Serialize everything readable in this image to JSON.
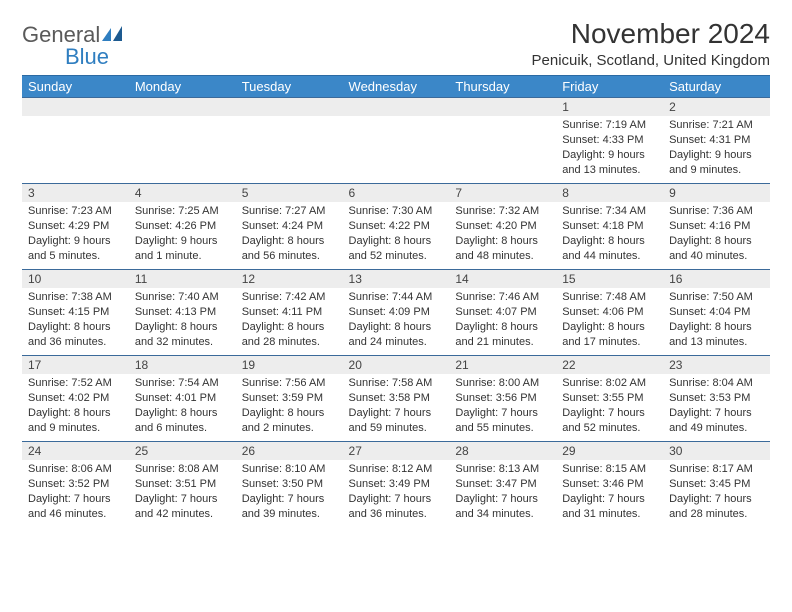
{
  "logo": {
    "word1": "General",
    "word2": "Blue",
    "icon_color": "#2f7ec0",
    "word1_color": "#5a5a5a",
    "word2_color": "#2f7ec0"
  },
  "title": "November 2024",
  "subtitle": "Penicuik, Scotland, United Kingdom",
  "header_bg": "#3b87c8",
  "header_border": "#2b6aa3",
  "daynum_bg": "#ededed",
  "cell_border": "#3b6a9a",
  "day_headers": [
    "Sunday",
    "Monday",
    "Tuesday",
    "Wednesday",
    "Thursday",
    "Friday",
    "Saturday"
  ],
  "weeks": [
    [
      {
        "blank": true
      },
      {
        "blank": true
      },
      {
        "blank": true
      },
      {
        "blank": true
      },
      {
        "blank": true
      },
      {
        "n": "1",
        "sunrise": "Sunrise: 7:19 AM",
        "sunset": "Sunset: 4:33 PM",
        "day1": "Daylight: 9 hours",
        "day2": "and 13 minutes."
      },
      {
        "n": "2",
        "sunrise": "Sunrise: 7:21 AM",
        "sunset": "Sunset: 4:31 PM",
        "day1": "Daylight: 9 hours",
        "day2": "and 9 minutes."
      }
    ],
    [
      {
        "n": "3",
        "sunrise": "Sunrise: 7:23 AM",
        "sunset": "Sunset: 4:29 PM",
        "day1": "Daylight: 9 hours",
        "day2": "and 5 minutes."
      },
      {
        "n": "4",
        "sunrise": "Sunrise: 7:25 AM",
        "sunset": "Sunset: 4:26 PM",
        "day1": "Daylight: 9 hours",
        "day2": "and 1 minute."
      },
      {
        "n": "5",
        "sunrise": "Sunrise: 7:27 AM",
        "sunset": "Sunset: 4:24 PM",
        "day1": "Daylight: 8 hours",
        "day2": "and 56 minutes."
      },
      {
        "n": "6",
        "sunrise": "Sunrise: 7:30 AM",
        "sunset": "Sunset: 4:22 PM",
        "day1": "Daylight: 8 hours",
        "day2": "and 52 minutes."
      },
      {
        "n": "7",
        "sunrise": "Sunrise: 7:32 AM",
        "sunset": "Sunset: 4:20 PM",
        "day1": "Daylight: 8 hours",
        "day2": "and 48 minutes."
      },
      {
        "n": "8",
        "sunrise": "Sunrise: 7:34 AM",
        "sunset": "Sunset: 4:18 PM",
        "day1": "Daylight: 8 hours",
        "day2": "and 44 minutes."
      },
      {
        "n": "9",
        "sunrise": "Sunrise: 7:36 AM",
        "sunset": "Sunset: 4:16 PM",
        "day1": "Daylight: 8 hours",
        "day2": "and 40 minutes."
      }
    ],
    [
      {
        "n": "10",
        "sunrise": "Sunrise: 7:38 AM",
        "sunset": "Sunset: 4:15 PM",
        "day1": "Daylight: 8 hours",
        "day2": "and 36 minutes."
      },
      {
        "n": "11",
        "sunrise": "Sunrise: 7:40 AM",
        "sunset": "Sunset: 4:13 PM",
        "day1": "Daylight: 8 hours",
        "day2": "and 32 minutes."
      },
      {
        "n": "12",
        "sunrise": "Sunrise: 7:42 AM",
        "sunset": "Sunset: 4:11 PM",
        "day1": "Daylight: 8 hours",
        "day2": "and 28 minutes."
      },
      {
        "n": "13",
        "sunrise": "Sunrise: 7:44 AM",
        "sunset": "Sunset: 4:09 PM",
        "day1": "Daylight: 8 hours",
        "day2": "and 24 minutes."
      },
      {
        "n": "14",
        "sunrise": "Sunrise: 7:46 AM",
        "sunset": "Sunset: 4:07 PM",
        "day1": "Daylight: 8 hours",
        "day2": "and 21 minutes."
      },
      {
        "n": "15",
        "sunrise": "Sunrise: 7:48 AM",
        "sunset": "Sunset: 4:06 PM",
        "day1": "Daylight: 8 hours",
        "day2": "and 17 minutes."
      },
      {
        "n": "16",
        "sunrise": "Sunrise: 7:50 AM",
        "sunset": "Sunset: 4:04 PM",
        "day1": "Daylight: 8 hours",
        "day2": "and 13 minutes."
      }
    ],
    [
      {
        "n": "17",
        "sunrise": "Sunrise: 7:52 AM",
        "sunset": "Sunset: 4:02 PM",
        "day1": "Daylight: 8 hours",
        "day2": "and 9 minutes."
      },
      {
        "n": "18",
        "sunrise": "Sunrise: 7:54 AM",
        "sunset": "Sunset: 4:01 PM",
        "day1": "Daylight: 8 hours",
        "day2": "and 6 minutes."
      },
      {
        "n": "19",
        "sunrise": "Sunrise: 7:56 AM",
        "sunset": "Sunset: 3:59 PM",
        "day1": "Daylight: 8 hours",
        "day2": "and 2 minutes."
      },
      {
        "n": "20",
        "sunrise": "Sunrise: 7:58 AM",
        "sunset": "Sunset: 3:58 PM",
        "day1": "Daylight: 7 hours",
        "day2": "and 59 minutes."
      },
      {
        "n": "21",
        "sunrise": "Sunrise: 8:00 AM",
        "sunset": "Sunset: 3:56 PM",
        "day1": "Daylight: 7 hours",
        "day2": "and 55 minutes."
      },
      {
        "n": "22",
        "sunrise": "Sunrise: 8:02 AM",
        "sunset": "Sunset: 3:55 PM",
        "day1": "Daylight: 7 hours",
        "day2": "and 52 minutes."
      },
      {
        "n": "23",
        "sunrise": "Sunrise: 8:04 AM",
        "sunset": "Sunset: 3:53 PM",
        "day1": "Daylight: 7 hours",
        "day2": "and 49 minutes."
      }
    ],
    [
      {
        "n": "24",
        "sunrise": "Sunrise: 8:06 AM",
        "sunset": "Sunset: 3:52 PM",
        "day1": "Daylight: 7 hours",
        "day2": "and 46 minutes."
      },
      {
        "n": "25",
        "sunrise": "Sunrise: 8:08 AM",
        "sunset": "Sunset: 3:51 PM",
        "day1": "Daylight: 7 hours",
        "day2": "and 42 minutes."
      },
      {
        "n": "26",
        "sunrise": "Sunrise: 8:10 AM",
        "sunset": "Sunset: 3:50 PM",
        "day1": "Daylight: 7 hours",
        "day2": "and 39 minutes."
      },
      {
        "n": "27",
        "sunrise": "Sunrise: 8:12 AM",
        "sunset": "Sunset: 3:49 PM",
        "day1": "Daylight: 7 hours",
        "day2": "and 36 minutes."
      },
      {
        "n": "28",
        "sunrise": "Sunrise: 8:13 AM",
        "sunset": "Sunset: 3:47 PM",
        "day1": "Daylight: 7 hours",
        "day2": "and 34 minutes."
      },
      {
        "n": "29",
        "sunrise": "Sunrise: 8:15 AM",
        "sunset": "Sunset: 3:46 PM",
        "day1": "Daylight: 7 hours",
        "day2": "and 31 minutes."
      },
      {
        "n": "30",
        "sunrise": "Sunrise: 8:17 AM",
        "sunset": "Sunset: 3:45 PM",
        "day1": "Daylight: 7 hours",
        "day2": "and 28 minutes."
      }
    ]
  ]
}
